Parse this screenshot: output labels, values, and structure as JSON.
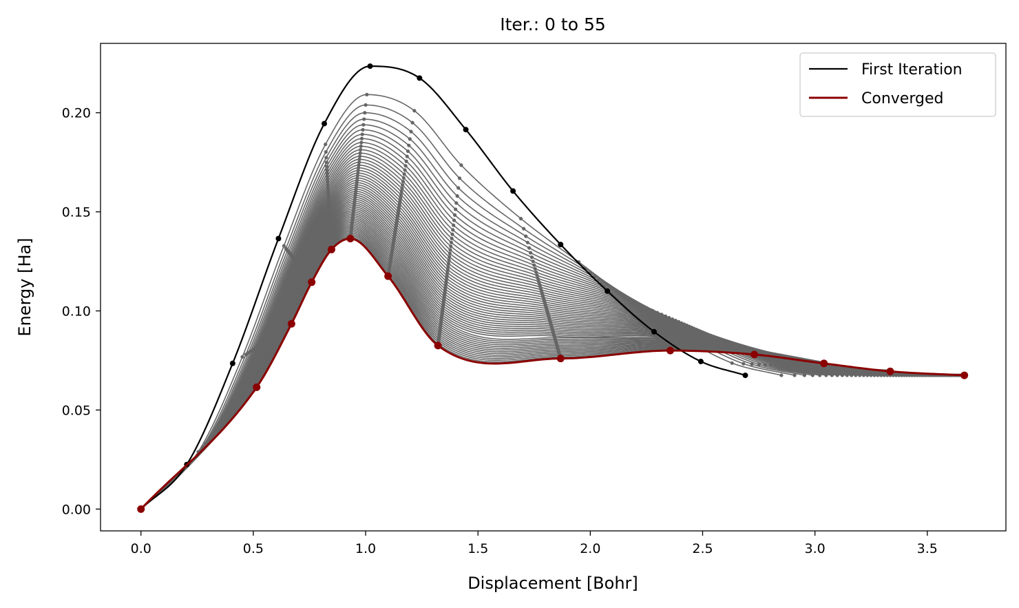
{
  "chart_data": {
    "type": "line",
    "title": "Iter.: 0 to 55",
    "xlabel": "Displacement [Bohr]",
    "ylabel": "Energy [Ha]",
    "xlim": [
      -0.18,
      3.85
    ],
    "ylim": [
      -0.011,
      0.235
    ],
    "xticks": [
      0.0,
      0.5,
      1.0,
      1.5,
      2.0,
      2.5,
      3.0,
      3.5
    ],
    "xtick_labels": [
      "0.0",
      "0.5",
      "1.0",
      "1.5",
      "2.0",
      "2.5",
      "3.0",
      "3.5"
    ],
    "yticks": [
      0.0,
      0.05,
      0.1,
      0.15,
      0.2
    ],
    "ytick_labels": [
      "0.00",
      "0.05",
      "0.10",
      "0.15",
      "0.20"
    ],
    "grid": false,
    "legend_position": "top-right",
    "legend": [
      "First Iteration",
      "Converged"
    ],
    "colors": {
      "first": "#000000",
      "converged": "#8b0000",
      "intermediate": "#666666"
    },
    "first_iteration": {
      "x": [
        0.0,
        0.204,
        0.408,
        0.612,
        0.816,
        1.02,
        1.24,
        1.446,
        1.656,
        1.868,
        2.076,
        2.284,
        2.492,
        2.69
      ],
      "y": [
        0.0,
        0.0225,
        0.0735,
        0.1365,
        0.1945,
        0.2235,
        0.2175,
        0.1915,
        0.1605,
        0.1335,
        0.11,
        0.0895,
        0.0745,
        0.0675
      ]
    },
    "converged": {
      "x": [
        0.0,
        0.515,
        0.67,
        0.76,
        0.848,
        0.932,
        1.1,
        1.322,
        1.868,
        2.356,
        2.73,
        3.04,
        3.335,
        3.665
      ],
      "y": [
        0.0,
        0.0615,
        0.0935,
        0.1145,
        0.131,
        0.1365,
        0.1175,
        0.0825,
        0.076,
        0.08,
        0.078,
        0.0735,
        0.0695,
        0.0675
      ]
    },
    "intermediate_count": 54
  }
}
